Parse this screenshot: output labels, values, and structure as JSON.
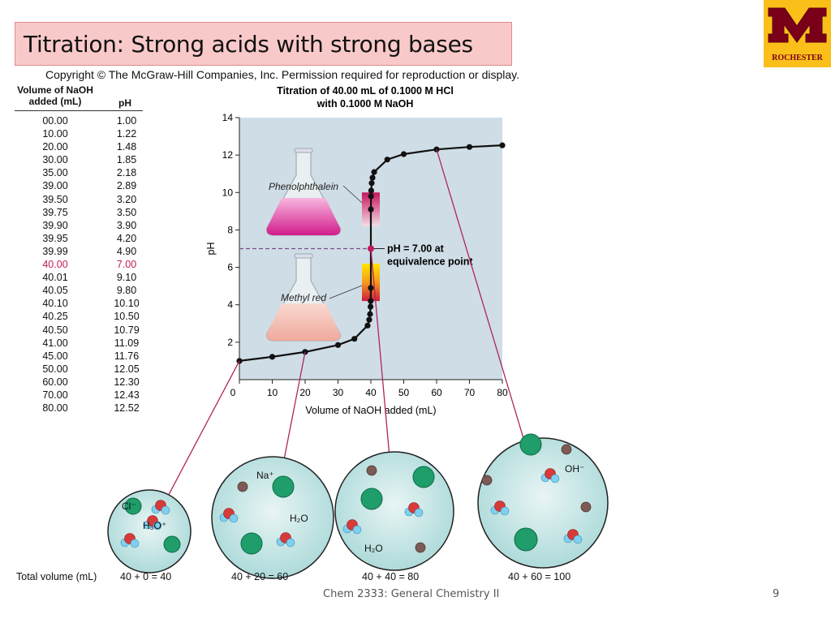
{
  "slide": {
    "title": "Titration: Strong acids with strong bases",
    "logo_text": "ROCHESTER",
    "copyright": "Copyright © The McGraw-Hill Companies, Inc. Permission required for reproduction or display.",
    "footer": "Chem 2333: General Chemistry II",
    "page_number": "9"
  },
  "table": {
    "header_volume": "Volume of NaOH added (mL)",
    "header_ph": "pH",
    "rows": [
      {
        "v": "00.00",
        "p": "1.00"
      },
      {
        "v": "10.00",
        "p": "1.22"
      },
      {
        "v": "20.00",
        "p": "1.48"
      },
      {
        "v": "30.00",
        "p": "1.85"
      },
      {
        "v": "35.00",
        "p": "2.18"
      },
      {
        "v": "39.00",
        "p": "2.89"
      },
      {
        "v": "39.50",
        "p": "3.20"
      },
      {
        "v": "39.75",
        "p": "3.50"
      },
      {
        "v": "39.90",
        "p": "3.90"
      },
      {
        "v": "39.95",
        "p": "4.20"
      },
      {
        "v": "39.99",
        "p": "4.90"
      },
      {
        "v": "40.00",
        "p": "7.00",
        "highlight": true
      },
      {
        "v": "40.01",
        "p": "9.10"
      },
      {
        "v": "40.05",
        "p": "9.80"
      },
      {
        "v": "40.10",
        "p": "10.10"
      },
      {
        "v": "40.25",
        "p": "10.50"
      },
      {
        "v": "40.50",
        "p": "10.79"
      },
      {
        "v": "41.00",
        "p": "11.09"
      },
      {
        "v": "45.00",
        "p": "11.76"
      },
      {
        "v": "50.00",
        "p": "12.05"
      },
      {
        "v": "60.00",
        "p": "12.30"
      },
      {
        "v": "70.00",
        "p": "12.43"
      },
      {
        "v": "80.00",
        "p": "12.52"
      }
    ],
    "highlight_color": "#c2185b"
  },
  "chart_data": {
    "type": "line",
    "title_line1": "Titration of 40.00 mL of 0.1000 M HCl",
    "title_line2": "with 0.1000 M NaOH",
    "xlabel": "Volume of NaOH added (mL)",
    "ylabel": "pH",
    "xlim": [
      0,
      80
    ],
    "ylim": [
      0,
      14
    ],
    "xticks": [
      0,
      10,
      20,
      30,
      40,
      50,
      60,
      70,
      80
    ],
    "yticks": [
      2,
      4,
      6,
      8,
      10,
      12,
      14
    ],
    "x": [
      0,
      10,
      20,
      30,
      35,
      39,
      39.5,
      39.75,
      39.9,
      39.95,
      39.99,
      40,
      40.01,
      40.05,
      40.1,
      40.25,
      40.5,
      41,
      45,
      50,
      60,
      70,
      80
    ],
    "y": [
      1.0,
      1.22,
      1.48,
      1.85,
      2.18,
      2.89,
      3.2,
      3.5,
      3.9,
      4.2,
      4.9,
      7.0,
      9.1,
      9.8,
      10.1,
      10.5,
      10.79,
      11.09,
      11.76,
      12.05,
      12.3,
      12.43,
      12.52
    ],
    "equivalence_label_line1": "pH = 7.00 at",
    "equivalence_label_line2": "equivalence point",
    "indicator_1": "Phenolphthalein",
    "indicator_2": "Methyl red",
    "background_color": "#cfdde6",
    "curve_color": "#111111",
    "equivalence_color": "#c2185b"
  },
  "particles": {
    "total_volume_label": "Total volume (mL)",
    "beakers": [
      {
        "total": "40 + 0 = 40",
        "labels": [
          "Cl⁻",
          "H₃O⁺"
        ]
      },
      {
        "total": "40 + 20 = 60",
        "labels": [
          "Na⁺",
          "H₂O"
        ]
      },
      {
        "total": "40 + 40 = 80",
        "labels": [
          "H₂O"
        ]
      },
      {
        "total": "40 + 60 = 100",
        "labels": [
          "OH⁻"
        ]
      }
    ]
  }
}
